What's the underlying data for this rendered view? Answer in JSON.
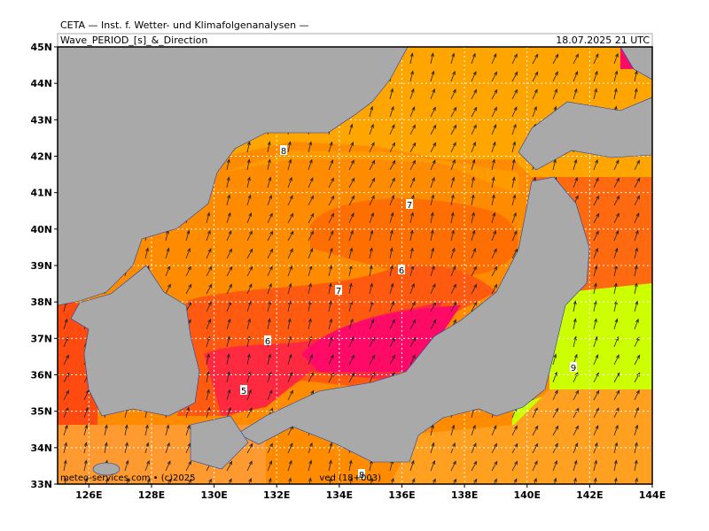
{
  "header": {
    "org": "CETA — Inst. f. Wetter- und Klimafolgenanalysen —",
    "title": "Wave_PERIOD_[s]_&_Direction",
    "time": "18.07.2025 21 UTC"
  },
  "axes": {
    "lat": [
      {
        "value": 33,
        "label": "33N"
      },
      {
        "value": 34,
        "label": "34N"
      },
      {
        "value": 35,
        "label": "35N"
      },
      {
        "value": 36,
        "label": "36N"
      },
      {
        "value": 37,
        "label": "37N"
      },
      {
        "value": 38,
        "label": "38N"
      },
      {
        "value": 39,
        "label": "39N"
      },
      {
        "value": 40,
        "label": "40N"
      },
      {
        "value": 41,
        "label": "41N"
      },
      {
        "value": 42,
        "label": "42N"
      },
      {
        "value": 43,
        "label": "43N"
      },
      {
        "value": 44,
        "label": "44N"
      },
      {
        "value": 45,
        "label": "45N"
      }
    ],
    "lon": [
      {
        "value": 126,
        "label": "126E"
      },
      {
        "value": 128,
        "label": "128E"
      },
      {
        "value": 130,
        "label": "130E"
      },
      {
        "value": 132,
        "label": "132E"
      },
      {
        "value": 134,
        "label": "134E"
      },
      {
        "value": 136,
        "label": "136E"
      },
      {
        "value": 138,
        "label": "138E"
      },
      {
        "value": 140,
        "label": "140E"
      },
      {
        "value": 142,
        "label": "142E"
      },
      {
        "value": 144,
        "label": "144E"
      }
    ]
  },
  "contour_labels": [
    "8",
    "7",
    "6",
    "7",
    "6",
    "5",
    "9",
    "8"
  ],
  "footer": {
    "left": "meteo-services.com • (c)2025",
    "right": "ved (18+003)"
  }
}
